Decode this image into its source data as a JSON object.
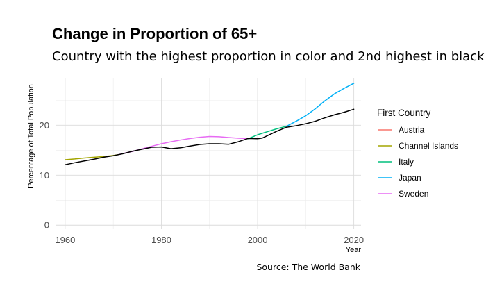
{
  "title": "Change in Proportion of 65+",
  "subtitle": "Country with the highest proportion in color and 2nd highest in black",
  "source": "Source: The World Bank",
  "chart_data": {
    "type": "line",
    "title": "Change in Proportion of 65+",
    "subtitle": "Country with the highest proportion in color and 2nd highest in black",
    "xlabel": "Year",
    "ylabel": "Percentage of Total Population",
    "xlim": [
      1958,
      2021.5
    ],
    "ylim": [
      -0.8,
      29.5
    ],
    "x_ticks": [
      1960,
      1980,
      2000,
      2020
    ],
    "y_ticks": [
      0,
      10,
      20
    ],
    "grid": true,
    "legend": {
      "title": "First Country",
      "position": "right",
      "entries": [
        {
          "name": "Austria",
          "color": "#F8766D"
        },
        {
          "name": "Channel Islands",
          "color": "#A3A500"
        },
        {
          "name": "Italy",
          "color": "#00BF7D"
        },
        {
          "name": "Japan",
          "color": "#00B0F6"
        },
        {
          "name": "Sweden",
          "color": "#E76BF3"
        }
      ]
    },
    "series": [
      {
        "name": "Channel Islands",
        "color": "#A3A500",
        "role": "first",
        "points": [
          [
            1960,
            13.1
          ],
          [
            1962,
            13.25
          ],
          [
            1964,
            13.45
          ],
          [
            1966,
            13.6
          ],
          [
            1968,
            13.75
          ],
          [
            1970,
            13.95
          ],
          [
            1971,
            14.1
          ]
        ]
      },
      {
        "name": "Sweden",
        "color": "#E76BF3",
        "role": "first",
        "points": [
          [
            1971,
            14.1
          ],
          [
            1972,
            14.35
          ],
          [
            1974,
            14.75
          ],
          [
            1976,
            15.3
          ],
          [
            1978,
            15.8
          ],
          [
            1980,
            16.3
          ],
          [
            1982,
            16.7
          ],
          [
            1984,
            17.05
          ],
          [
            1986,
            17.35
          ],
          [
            1988,
            17.6
          ],
          [
            1990,
            17.75
          ],
          [
            1992,
            17.7
          ],
          [
            1994,
            17.55
          ],
          [
            1996,
            17.4
          ],
          [
            1998,
            17.3
          ]
        ]
      },
      {
        "name": "Italy",
        "color": "#00BF7D",
        "role": "first",
        "points": [
          [
            1998,
            17.3
          ],
          [
            2000,
            18.1
          ],
          [
            2002,
            18.7
          ],
          [
            2004,
            19.3
          ],
          [
            2006,
            19.8
          ]
        ]
      },
      {
        "name": "Japan",
        "color": "#00B0F6",
        "role": "first",
        "points": [
          [
            2006,
            19.8
          ],
          [
            2008,
            20.8
          ],
          [
            2010,
            21.9
          ],
          [
            2012,
            23.3
          ],
          [
            2014,
            24.9
          ],
          [
            2016,
            26.3
          ],
          [
            2018,
            27.4
          ],
          [
            2020,
            28.4
          ]
        ]
      },
      {
        "name": "Second highest",
        "color": "#000000",
        "role": "second",
        "points": [
          [
            1960,
            12.1
          ],
          [
            1962,
            12.5
          ],
          [
            1964,
            12.85
          ],
          [
            1966,
            13.2
          ],
          [
            1968,
            13.6
          ],
          [
            1970,
            13.9
          ],
          [
            1972,
            14.3
          ],
          [
            1974,
            14.8
          ],
          [
            1976,
            15.2
          ],
          [
            1978,
            15.6
          ],
          [
            1980,
            15.65
          ],
          [
            1982,
            15.3
          ],
          [
            1984,
            15.5
          ],
          [
            1986,
            15.85
          ],
          [
            1988,
            16.15
          ],
          [
            1990,
            16.3
          ],
          [
            1992,
            16.3
          ],
          [
            1994,
            16.2
          ],
          [
            1996,
            16.7
          ],
          [
            1998,
            17.35
          ],
          [
            2000,
            17.3
          ],
          [
            2001,
            17.45
          ],
          [
            2002,
            17.9
          ],
          [
            2004,
            18.8
          ],
          [
            2006,
            19.6
          ],
          [
            2008,
            19.9
          ],
          [
            2010,
            20.3
          ],
          [
            2012,
            20.8
          ],
          [
            2014,
            21.5
          ],
          [
            2016,
            22.1
          ],
          [
            2018,
            22.6
          ],
          [
            2020,
            23.2
          ]
        ]
      }
    ]
  }
}
